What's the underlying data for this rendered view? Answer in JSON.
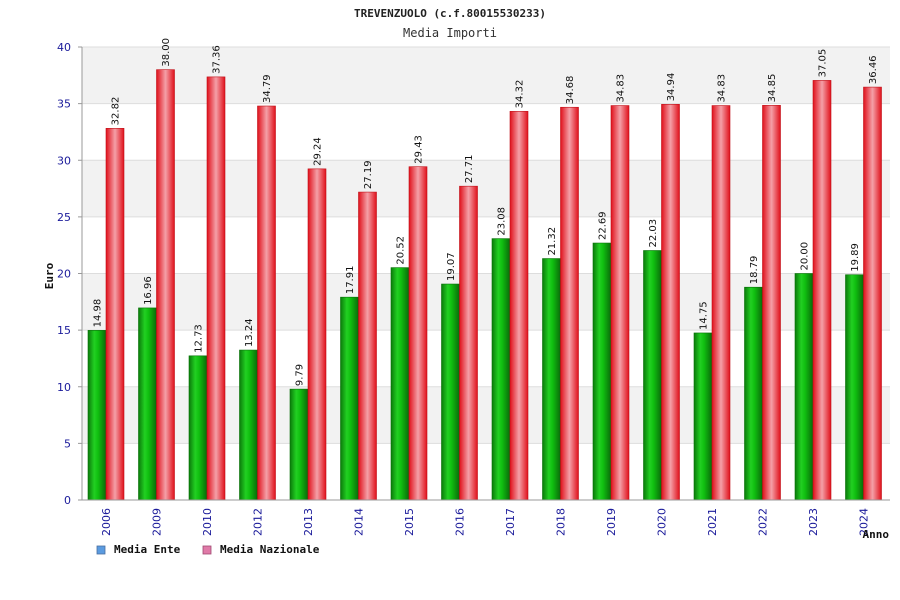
{
  "chart_data": {
    "type": "bar",
    "title": "TREVENZUOLO (c.f.80015530233)",
    "subtitle": "Media Importi",
    "xlabel": "Anno",
    "ylabel": "Euro",
    "ylim": [
      0,
      40
    ],
    "yticks": [
      0,
      5,
      10,
      15,
      20,
      25,
      30,
      35,
      40
    ],
    "categories": [
      "2006",
      "2009",
      "2010",
      "2012",
      "2013",
      "2014",
      "2015",
      "2016",
      "2017",
      "2018",
      "2019",
      "2020",
      "2021",
      "2022",
      "2023",
      "2024"
    ],
    "series": [
      {
        "name": "Media Ente",
        "color": "#00b000",
        "values": [
          14.98,
          16.96,
          12.73,
          13.24,
          9.79,
          17.91,
          20.52,
          19.07,
          23.08,
          21.32,
          22.69,
          22.03,
          14.75,
          18.79,
          20.0,
          19.89
        ],
        "labels": [
          "14.98",
          "16.96",
          "12.73",
          "13.24",
          "9.79",
          "17.91",
          "20.52",
          "19.07",
          "23.08",
          "21.32",
          "22.69",
          "22.03",
          "14.75",
          "18.79",
          "20.00",
          "19.89"
        ]
      },
      {
        "name": "Media Nazionale",
        "color": "#e8202a",
        "values": [
          32.82,
          38.0,
          37.36,
          34.79,
          29.24,
          27.19,
          29.43,
          27.71,
          34.32,
          34.68,
          34.83,
          34.94,
          34.83,
          34.85,
          37.05,
          36.46
        ],
        "labels": [
          "32.82",
          "38.00",
          "37.36",
          "34.79",
          "29.24",
          "27.19",
          "29.43",
          "27.71",
          "34.32",
          "34.68",
          "34.83",
          "34.94",
          "34.83",
          "34.85",
          "37.05",
          "36.46"
        ]
      }
    ],
    "legend": [
      {
        "label": "Media Ente",
        "color": "#5b9be0"
      },
      {
        "label": "Media Nazionale",
        "color": "#e07aa8"
      }
    ],
    "grid": true,
    "legend_position": "bottom-left"
  }
}
